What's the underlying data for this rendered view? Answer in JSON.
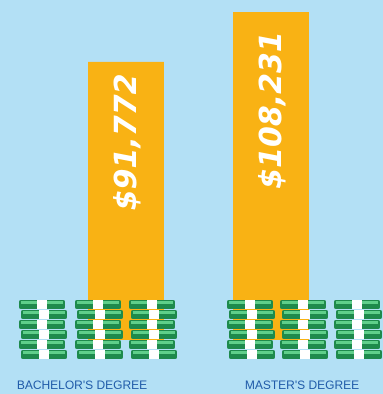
{
  "chart_data": {
    "type": "bar",
    "categories": [
      "BACHELOR'S DEGREE",
      "MASTER'S DEGREE"
    ],
    "values": [
      91772,
      108231
    ],
    "value_labels": [
      "$91,772",
      "$108,231"
    ],
    "title": "",
    "xlabel": "",
    "ylabel": "",
    "ylim": [
      0,
      108231
    ],
    "grid": false,
    "legend": "none"
  },
  "colors": {
    "background": "#b3e0f5",
    "bar": "#f9b214",
    "money_dark": "#1e8a4c",
    "money_light": "#5fcf8a",
    "money_band": "#ffffff",
    "label_text": "#1f5aa8"
  },
  "icons": {
    "money_stack": "money-stack-icon"
  }
}
